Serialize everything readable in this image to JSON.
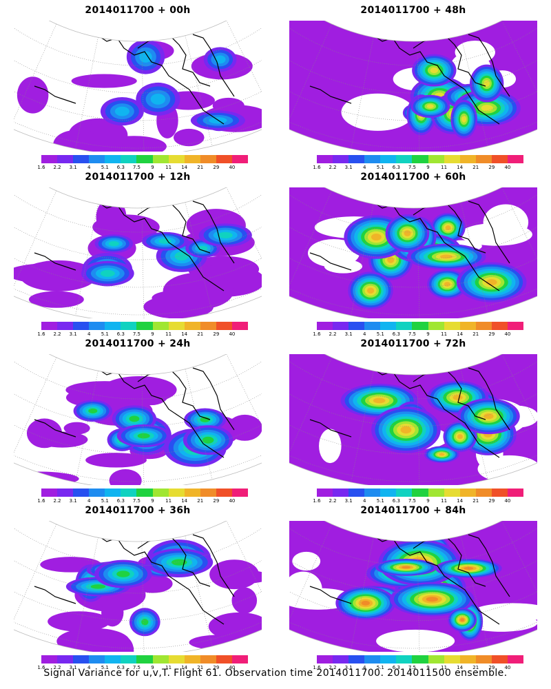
{
  "panels": [
    {
      "title": "2014011700 + 00h",
      "intensity": 0.25,
      "seed": 3
    },
    {
      "title": "2014011700 + 48h",
      "intensity": 0.75,
      "seed": 11
    },
    {
      "title": "2014011700 + 12h",
      "intensity": 0.35,
      "seed": 5
    },
    {
      "title": "2014011700 + 60h",
      "intensity": 0.85,
      "seed": 17
    },
    {
      "title": "2014011700 + 24h",
      "intensity": 0.45,
      "seed": 7
    },
    {
      "title": "2014011700 + 72h",
      "intensity": 0.9,
      "seed": 23
    },
    {
      "title": "2014011700 + 36h",
      "intensity": 0.55,
      "seed": 9
    },
    {
      "title": "2014011700 + 84h",
      "intensity": 1.0,
      "seed": 29
    }
  ],
  "colorbar": {
    "labels": [
      "1.6",
      "2.2",
      "3.1",
      "4",
      "5.1",
      "6.3",
      "7.5",
      "9",
      "11",
      "14",
      "21",
      "29",
      "40"
    ],
    "colors": [
      "#a01ee0",
      "#7828f0",
      "#2850f0",
      "#1e8cf0",
      "#10b4f0",
      "#10d2c0",
      "#20d240",
      "#a0e632",
      "#e6dc32",
      "#f0b428",
      "#f08c28",
      "#f05028",
      "#f01e78"
    ]
  },
  "footer": "Signal Variance for u,v,T. Flight 61. Observation time 2014011700. 2014011500 ensemble."
}
